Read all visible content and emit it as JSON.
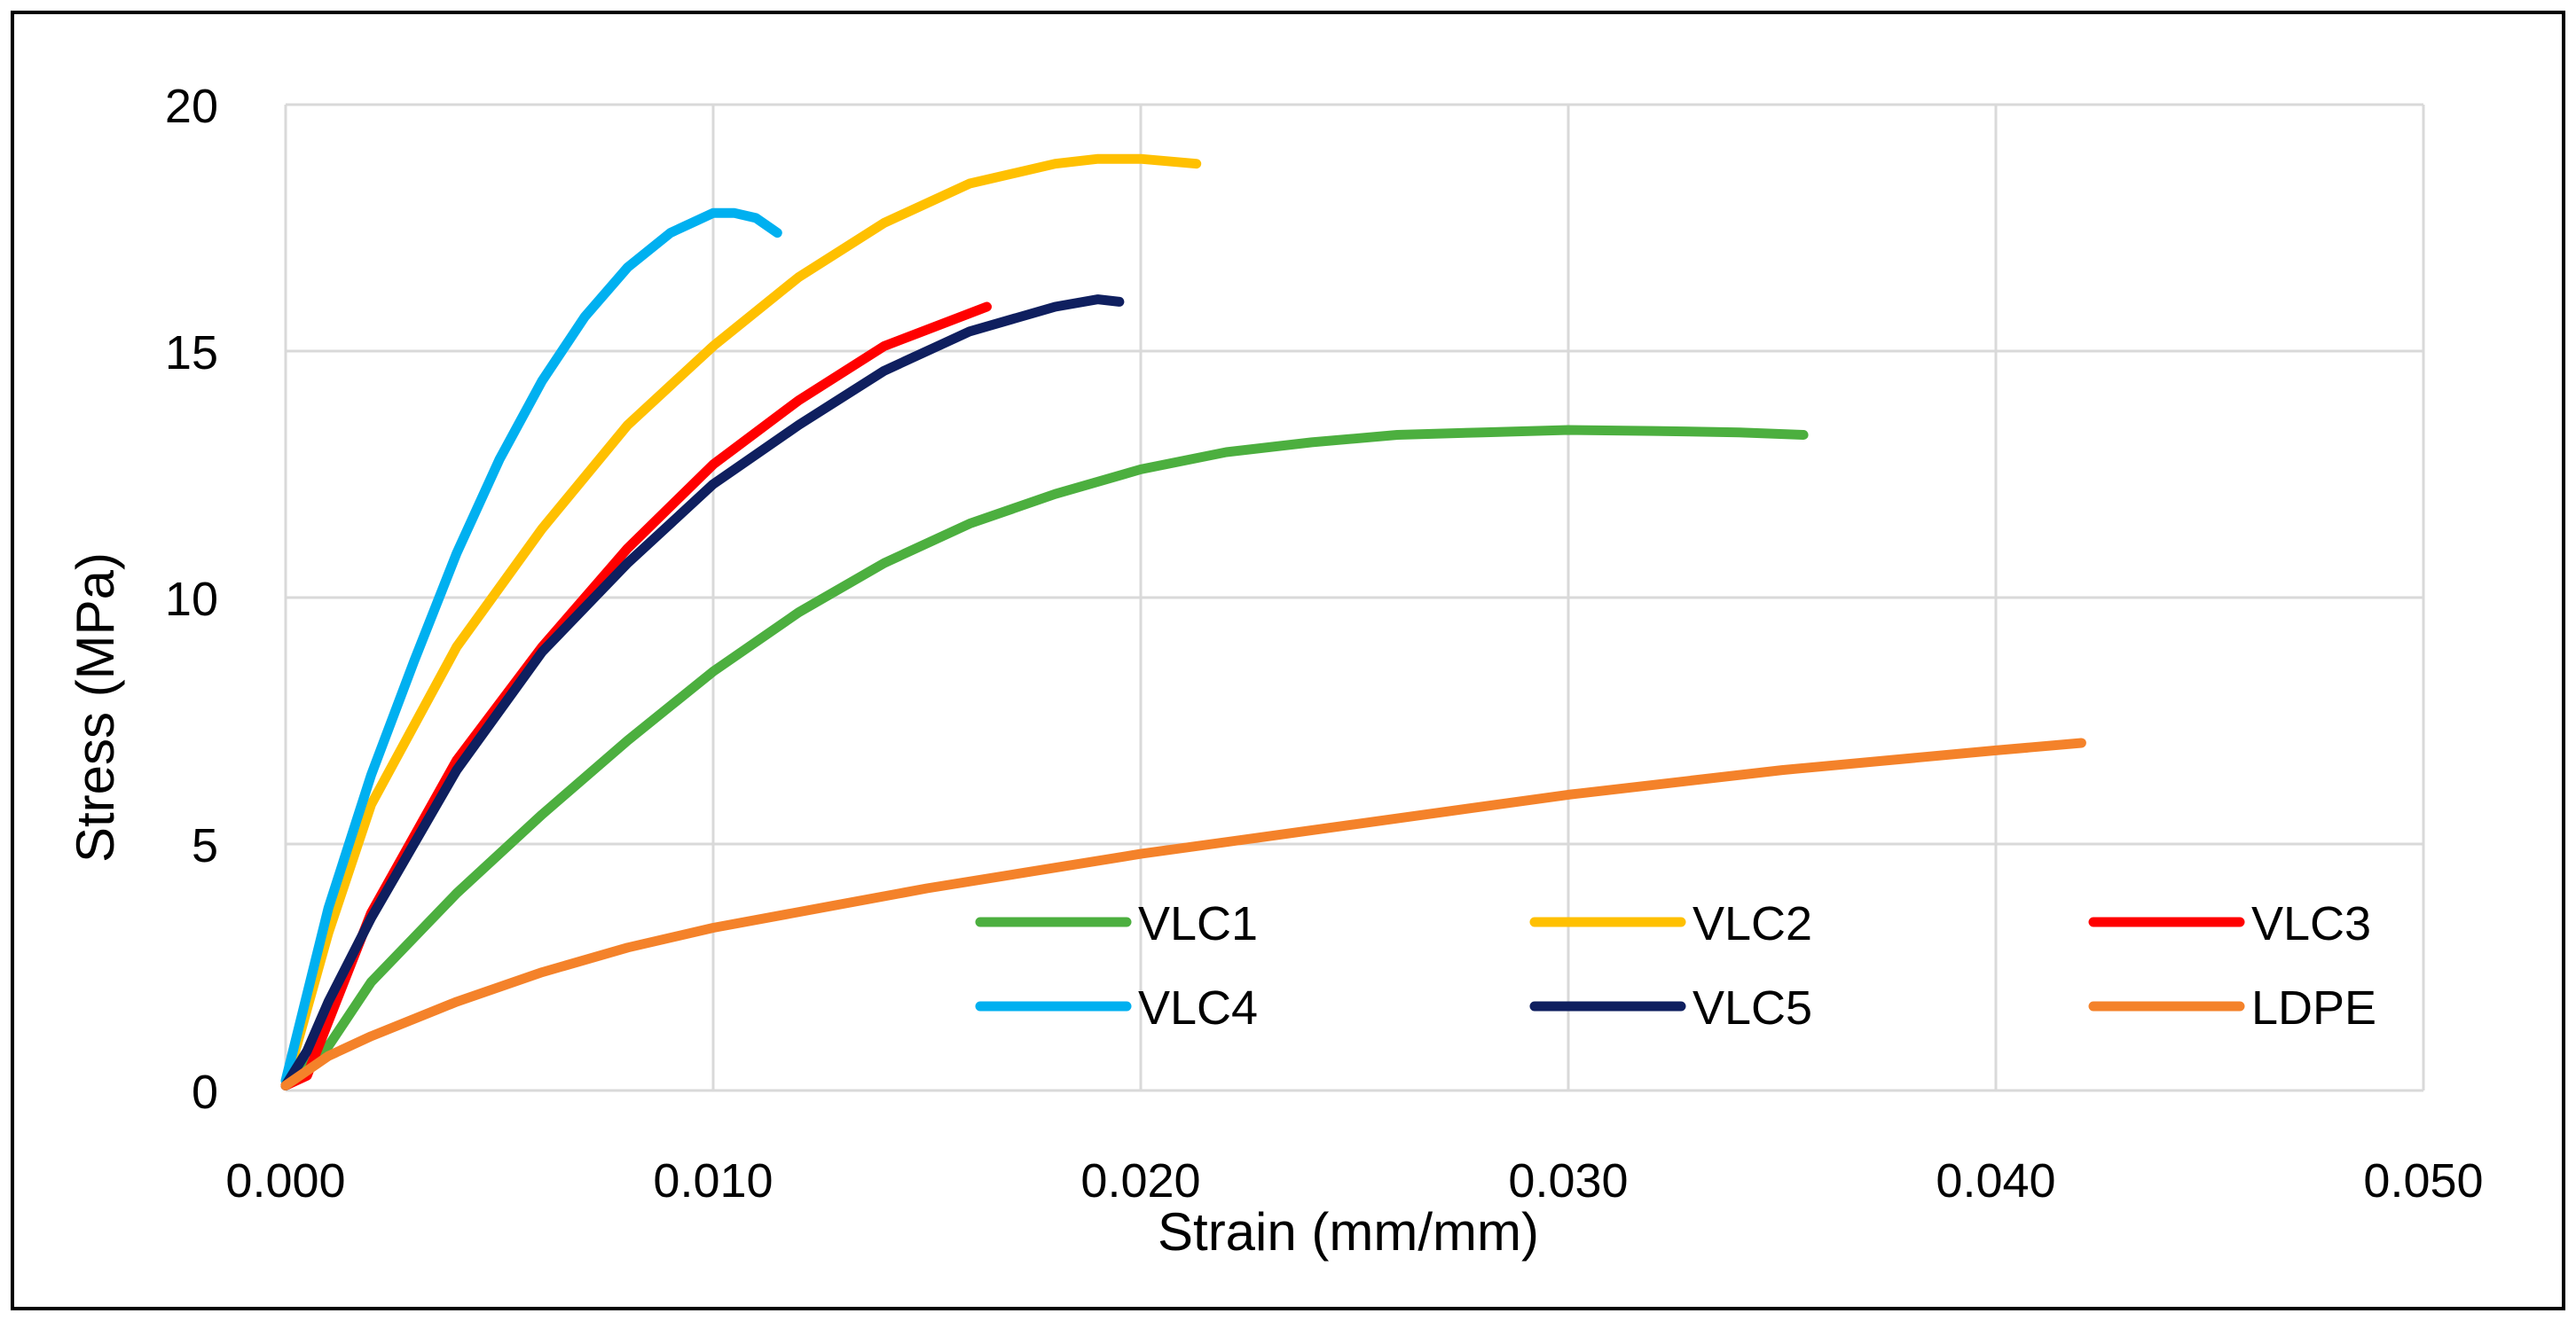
{
  "chart_data": {
    "type": "line",
    "title": "",
    "xlabel": "Strain (mm/mm)",
    "ylabel": "Stress (MPa)",
    "xlim": [
      0,
      0.05
    ],
    "ylim": [
      0,
      20
    ],
    "x_ticks": [
      0,
      0.01,
      0.02,
      0.03,
      0.04,
      0.05
    ],
    "y_ticks": [
      0,
      5,
      10,
      15,
      20
    ],
    "x_tick_labels": [
      "0.000",
      "0.010",
      "0.020",
      "0.030",
      "0.040",
      "0.050"
    ],
    "y_tick_labels": [
      "0",
      "5",
      "10",
      "15",
      "20"
    ],
    "grid": true,
    "legend": "bottom-right inside plot, 3 columns",
    "series": [
      {
        "name": "VLC1",
        "color": "#4CAF3F",
        "x": [
          0,
          0.001,
          0.002,
          0.004,
          0.006,
          0.008,
          0.01,
          0.012,
          0.014,
          0.016,
          0.018,
          0.02,
          0.022,
          0.024,
          0.026,
          0.028,
          0.03,
          0.032,
          0.034,
          0.0355
        ],
        "y": [
          0.1,
          0.9,
          2.2,
          4.0,
          5.6,
          7.1,
          8.5,
          9.7,
          10.7,
          11.5,
          12.1,
          12.6,
          12.95,
          13.15,
          13.3,
          13.35,
          13.4,
          13.38,
          13.35,
          13.3
        ]
      },
      {
        "name": "VLC2",
        "color": "#FFC000",
        "x": [
          0,
          0.001,
          0.002,
          0.004,
          0.006,
          0.008,
          0.01,
          0.012,
          0.014,
          0.016,
          0.018,
          0.019,
          0.02,
          0.0213
        ],
        "y": [
          0.1,
          3.2,
          5.8,
          9.0,
          11.4,
          13.5,
          15.1,
          16.5,
          17.6,
          18.4,
          18.8,
          18.9,
          18.9,
          18.8
        ]
      },
      {
        "name": "VLC3",
        "color": "#FF0000",
        "x": [
          0,
          0.0005,
          0.001,
          0.002,
          0.004,
          0.006,
          0.008,
          0.01,
          0.012,
          0.014,
          0.0164
        ],
        "y": [
          0.1,
          0.3,
          1.4,
          3.6,
          6.7,
          9.0,
          11.0,
          12.7,
          14.0,
          15.1,
          15.9
        ]
      },
      {
        "name": "VLC4",
        "color": "#00B0F0",
        "x": [
          0,
          0.001,
          0.002,
          0.003,
          0.004,
          0.005,
          0.006,
          0.007,
          0.008,
          0.009,
          0.01,
          0.0105,
          0.011,
          0.0115
        ],
        "y": [
          0.2,
          3.7,
          6.4,
          8.7,
          10.9,
          12.8,
          14.4,
          15.7,
          16.7,
          17.4,
          17.8,
          17.8,
          17.7,
          17.4
        ]
      },
      {
        "name": "VLC5",
        "color": "#0F1F5F",
        "x": [
          0,
          0.0005,
          0.001,
          0.002,
          0.004,
          0.006,
          0.008,
          0.01,
          0.012,
          0.014,
          0.016,
          0.018,
          0.019,
          0.0195
        ],
        "y": [
          0.1,
          0.8,
          1.8,
          3.5,
          6.5,
          8.9,
          10.7,
          12.3,
          13.5,
          14.6,
          15.4,
          15.9,
          16.05,
          16.0
        ]
      },
      {
        "name": "LDPE",
        "color": "#F4822A",
        "x": [
          0,
          0.001,
          0.002,
          0.004,
          0.006,
          0.008,
          0.01,
          0.015,
          0.02,
          0.025,
          0.03,
          0.035,
          0.04,
          0.042
        ],
        "y": [
          0.1,
          0.7,
          1.1,
          1.8,
          2.4,
          2.9,
          3.3,
          4.1,
          4.8,
          5.4,
          6.0,
          6.5,
          6.9,
          7.05
        ]
      }
    ]
  }
}
